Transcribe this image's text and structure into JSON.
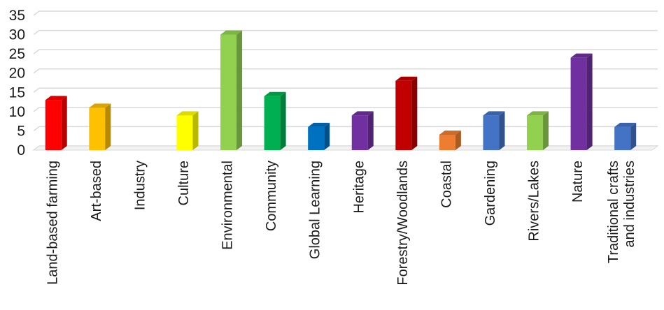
{
  "chart_data": {
    "type": "bar",
    "categories": [
      "Land-based farming",
      "Art-based",
      "Industry",
      "Culture",
      "Environmental",
      "Community",
      "Global Learning",
      "Heritage",
      "Forestry/Woodlands",
      "Coastal",
      "Gardening",
      "Rivers/Lakes",
      "Nature",
      "Traditional crafts and industries"
    ],
    "category_lines": [
      [
        "Land-based farming"
      ],
      [
        "Art-based"
      ],
      [
        "Industry"
      ],
      [
        "Culture"
      ],
      [
        "Environmental"
      ],
      [
        "Community"
      ],
      [
        "Global Learning"
      ],
      [
        "Heritage"
      ],
      [
        "Forestry/Woodlands"
      ],
      [
        "Coastal"
      ],
      [
        "Gardening"
      ],
      [
        "Rivers/Lakes"
      ],
      [
        "Nature"
      ],
      [
        "Traditional crafts",
        "and industries"
      ]
    ],
    "values": [
      13,
      11,
      0,
      9,
      30,
      14,
      6,
      9,
      18,
      4,
      9,
      9,
      24,
      6
    ],
    "colors": [
      "#ff0000",
      "#ffc000",
      "#a0a0a0",
      "#ffff00",
      "#92d050",
      "#00b050",
      "#0070c0",
      "#7030a0",
      "#c00000",
      "#ed7d31",
      "#4472c4",
      "#92d050",
      "#7030a0",
      "#4472c4"
    ],
    "ylim": [
      0,
      35
    ],
    "yticks": [
      0,
      5,
      10,
      15,
      20,
      25,
      30,
      35
    ],
    "grid": true,
    "style": "3d-column",
    "title": "",
    "xlabel": "",
    "ylabel": ""
  }
}
